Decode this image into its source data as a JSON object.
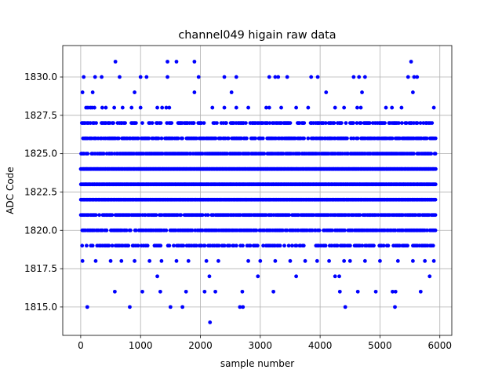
{
  "chart_data": {
    "type": "scatter",
    "title": "channel049 higain raw data",
    "xlabel": "sample number",
    "ylabel": "ADC Code",
    "xlim": [
      -300,
      6200
    ],
    "ylim": [
      1813.15,
      1832.05
    ],
    "xticks": [
      0,
      1000,
      2000,
      3000,
      4000,
      5000,
      6000
    ],
    "xtick_labels": [
      "0",
      "1000",
      "2000",
      "3000",
      "4000",
      "5000",
      "6000"
    ],
    "yticks": [
      1815.0,
      1817.5,
      1820.0,
      1822.5,
      1825.0,
      1827.5,
      1830.0
    ],
    "ytick_labels": [
      "1815.0",
      "1817.5",
      "1820.0",
      "1822.5",
      "1825.0",
      "1827.5",
      "1830.0"
    ],
    "grid": true,
    "marker_color": "#0000ff",
    "n_samples": 5940,
    "level_fill_density": {
      "1819": 0.55,
      "1820": 0.75,
      "1821": 0.85,
      "1822": 1.0,
      "1823": 1.0,
      "1824": 1.0,
      "1825": 0.85,
      "1826": 0.75,
      "1827": 0.55
    },
    "sparse_points": [
      {
        "x": 50,
        "y": 1830
      },
      {
        "x": 240,
        "y": 1830
      },
      {
        "x": 350,
        "y": 1830
      },
      {
        "x": 650,
        "y": 1830
      },
      {
        "x": 1000,
        "y": 1830
      },
      {
        "x": 1100,
        "y": 1830
      },
      {
        "x": 1450,
        "y": 1830
      },
      {
        "x": 1970,
        "y": 1830
      },
      {
        "x": 2400,
        "y": 1830
      },
      {
        "x": 2600,
        "y": 1830
      },
      {
        "x": 3150,
        "y": 1830
      },
      {
        "x": 3250,
        "y": 1830
      },
      {
        "x": 3300,
        "y": 1830
      },
      {
        "x": 3450,
        "y": 1830
      },
      {
        "x": 3850,
        "y": 1830
      },
      {
        "x": 3960,
        "y": 1830
      },
      {
        "x": 4560,
        "y": 1830
      },
      {
        "x": 4650,
        "y": 1830
      },
      {
        "x": 4750,
        "y": 1830
      },
      {
        "x": 5470,
        "y": 1830
      },
      {
        "x": 5570,
        "y": 1830
      },
      {
        "x": 5620,
        "y": 1830
      },
      {
        "x": 580,
        "y": 1831
      },
      {
        "x": 1450,
        "y": 1831
      },
      {
        "x": 1600,
        "y": 1831
      },
      {
        "x": 1900,
        "y": 1831
      },
      {
        "x": 5520,
        "y": 1831
      },
      {
        "x": 30,
        "y": 1829
      },
      {
        "x": 200,
        "y": 1829
      },
      {
        "x": 900,
        "y": 1829
      },
      {
        "x": 1900,
        "y": 1829
      },
      {
        "x": 2520,
        "y": 1829
      },
      {
        "x": 4100,
        "y": 1829
      },
      {
        "x": 4700,
        "y": 1829
      },
      {
        "x": 5550,
        "y": 1829
      },
      {
        "x": 90,
        "y": 1828
      },
      {
        "x": 120,
        "y": 1828
      },
      {
        "x": 160,
        "y": 1828
      },
      {
        "x": 190,
        "y": 1828
      },
      {
        "x": 230,
        "y": 1828
      },
      {
        "x": 360,
        "y": 1828
      },
      {
        "x": 420,
        "y": 1828
      },
      {
        "x": 560,
        "y": 1828
      },
      {
        "x": 700,
        "y": 1828
      },
      {
        "x": 850,
        "y": 1828
      },
      {
        "x": 1000,
        "y": 1828
      },
      {
        "x": 1280,
        "y": 1828
      },
      {
        "x": 1360,
        "y": 1828
      },
      {
        "x": 1430,
        "y": 1828
      },
      {
        "x": 1480,
        "y": 1828
      },
      {
        "x": 2200,
        "y": 1828
      },
      {
        "x": 2400,
        "y": 1828
      },
      {
        "x": 2600,
        "y": 1828
      },
      {
        "x": 2800,
        "y": 1828
      },
      {
        "x": 3100,
        "y": 1828
      },
      {
        "x": 3150,
        "y": 1828
      },
      {
        "x": 3350,
        "y": 1828
      },
      {
        "x": 3600,
        "y": 1828
      },
      {
        "x": 3800,
        "y": 1828
      },
      {
        "x": 4250,
        "y": 1828
      },
      {
        "x": 4400,
        "y": 1828
      },
      {
        "x": 4620,
        "y": 1828
      },
      {
        "x": 4680,
        "y": 1828
      },
      {
        "x": 5100,
        "y": 1828
      },
      {
        "x": 5200,
        "y": 1828
      },
      {
        "x": 5360,
        "y": 1828
      },
      {
        "x": 5900,
        "y": 1828
      },
      {
        "x": 30,
        "y": 1818
      },
      {
        "x": 250,
        "y": 1818
      },
      {
        "x": 500,
        "y": 1818
      },
      {
        "x": 680,
        "y": 1818
      },
      {
        "x": 900,
        "y": 1818
      },
      {
        "x": 1150,
        "y": 1818
      },
      {
        "x": 1350,
        "y": 1818
      },
      {
        "x": 1600,
        "y": 1818
      },
      {
        "x": 1800,
        "y": 1818
      },
      {
        "x": 2100,
        "y": 1818
      },
      {
        "x": 2300,
        "y": 1818
      },
      {
        "x": 2800,
        "y": 1818
      },
      {
        "x": 3000,
        "y": 1818
      },
      {
        "x": 3250,
        "y": 1818
      },
      {
        "x": 3500,
        "y": 1818
      },
      {
        "x": 3750,
        "y": 1818
      },
      {
        "x": 3950,
        "y": 1818
      },
      {
        "x": 4150,
        "y": 1818
      },
      {
        "x": 4400,
        "y": 1818
      },
      {
        "x": 4500,
        "y": 1818
      },
      {
        "x": 4750,
        "y": 1818
      },
      {
        "x": 5000,
        "y": 1818
      },
      {
        "x": 5300,
        "y": 1818
      },
      {
        "x": 5550,
        "y": 1818
      },
      {
        "x": 5750,
        "y": 1818
      },
      {
        "x": 5900,
        "y": 1818
      },
      {
        "x": 1280,
        "y": 1817
      },
      {
        "x": 2150,
        "y": 1817
      },
      {
        "x": 2960,
        "y": 1817
      },
      {
        "x": 3600,
        "y": 1817
      },
      {
        "x": 4250,
        "y": 1817
      },
      {
        "x": 4320,
        "y": 1817
      },
      {
        "x": 5830,
        "y": 1817
      },
      {
        "x": 570,
        "y": 1816
      },
      {
        "x": 1030,
        "y": 1816
      },
      {
        "x": 1330,
        "y": 1816
      },
      {
        "x": 1760,
        "y": 1816
      },
      {
        "x": 2070,
        "y": 1816
      },
      {
        "x": 2250,
        "y": 1816
      },
      {
        "x": 2700,
        "y": 1816
      },
      {
        "x": 3220,
        "y": 1816
      },
      {
        "x": 4330,
        "y": 1816
      },
      {
        "x": 4630,
        "y": 1816
      },
      {
        "x": 4930,
        "y": 1816
      },
      {
        "x": 5210,
        "y": 1816
      },
      {
        "x": 5260,
        "y": 1816
      },
      {
        "x": 5680,
        "y": 1816
      },
      {
        "x": 110,
        "y": 1815
      },
      {
        "x": 820,
        "y": 1815
      },
      {
        "x": 1500,
        "y": 1815
      },
      {
        "x": 1700,
        "y": 1815
      },
      {
        "x": 2660,
        "y": 1815
      },
      {
        "x": 2710,
        "y": 1815
      },
      {
        "x": 4420,
        "y": 1815
      },
      {
        "x": 5250,
        "y": 1815
      },
      {
        "x": 2160,
        "y": 1814
      }
    ]
  }
}
